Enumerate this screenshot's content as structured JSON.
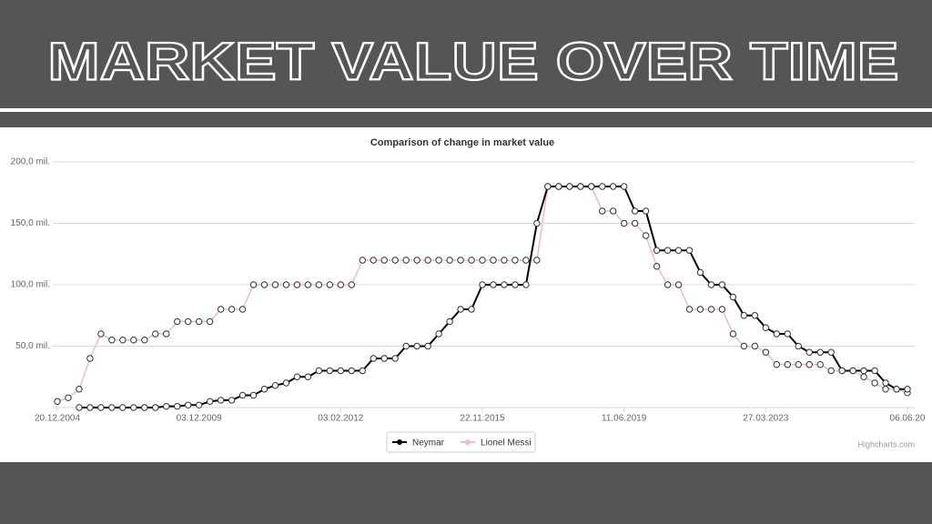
{
  "header": {
    "title": "MARKET VALUE OVER TIME"
  },
  "chart_data": {
    "type": "line",
    "title": "Comparison of change in market value",
    "credit": "Highcharts.com",
    "categories": [
      "20.12.2004",
      null,
      null,
      null,
      null,
      null,
      null,
      null,
      null,
      null,
      null,
      null,
      null,
      "03.12.2009",
      null,
      null,
      null,
      null,
      null,
      null,
      null,
      null,
      null,
      null,
      null,
      null,
      "03.02.2012",
      null,
      null,
      null,
      null,
      null,
      null,
      null,
      null,
      null,
      null,
      null,
      null,
      "22.11.2015",
      null,
      null,
      null,
      null,
      null,
      null,
      null,
      null,
      null,
      null,
      null,
      null,
      "11.06.2019",
      null,
      null,
      null,
      null,
      null,
      null,
      null,
      null,
      null,
      null,
      null,
      null,
      "27.03.2023",
      null,
      null,
      null,
      null,
      null,
      null,
      null,
      null,
      null,
      null,
      null,
      null,
      "06.06.20"
    ],
    "series": [
      {
        "name": "Neymar",
        "color": "#000000",
        "values": [
          null,
          null,
          0,
          0,
          0,
          0,
          0,
          0,
          0,
          0,
          1,
          1,
          2,
          2,
          5,
          6,
          6,
          10,
          10,
          15,
          18,
          20,
          25,
          25,
          30,
          30,
          30,
          30,
          30,
          40,
          40,
          40,
          50,
          50,
          50,
          60,
          70,
          80,
          80,
          100,
          100,
          100,
          100,
          100,
          150,
          180,
          180,
          180,
          180,
          180,
          180,
          180,
          180,
          160,
          160,
          128,
          128,
          128,
          128,
          110,
          100,
          100,
          90,
          75,
          75,
          65,
          60,
          60,
          50,
          45,
          45,
          45,
          30,
          30,
          30,
          30,
          20,
          15,
          15
        ]
      },
      {
        "name": "Lionel Messi",
        "color": "#f2b8c6",
        "values": [
          5,
          8,
          15,
          40,
          60,
          55,
          55,
          55,
          55,
          60,
          60,
          70,
          70,
          70,
          70,
          80,
          80,
          80,
          100,
          100,
          100,
          100,
          100,
          100,
          100,
          100,
          100,
          100,
          120,
          120,
          120,
          120,
          120,
          120,
          120,
          120,
          120,
          120,
          120,
          120,
          120,
          120,
          120,
          120,
          120,
          180,
          180,
          180,
          180,
          180,
          160,
          160,
          150,
          150,
          140,
          115,
          100,
          100,
          80,
          80,
          80,
          80,
          60,
          50,
          50,
          45,
          35,
          35,
          35,
          35,
          35,
          30,
          30,
          30,
          25,
          20,
          15,
          15,
          12
        ]
      }
    ],
    "ylim": [
      0,
      200
    ],
    "yticks": [
      {
        "value": 50,
        "label": "50,0 mil."
      },
      {
        "value": 100,
        "label": "100,0 mil."
      },
      {
        "value": 150,
        "label": "150,0 mil."
      },
      {
        "value": 200,
        "label": "200,0 mil."
      }
    ],
    "grid": true
  }
}
